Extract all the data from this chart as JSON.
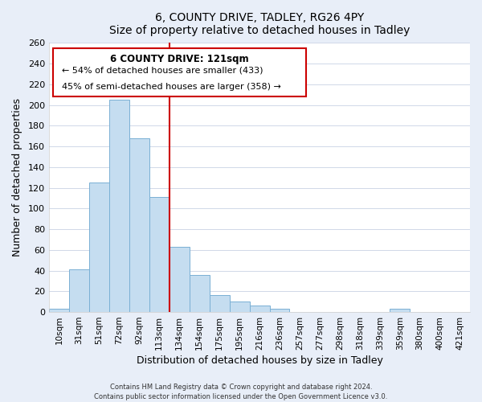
{
  "title": "6, COUNTY DRIVE, TADLEY, RG26 4PY",
  "subtitle": "Size of property relative to detached houses in Tadley",
  "xlabel": "Distribution of detached houses by size in Tadley",
  "ylabel": "Number of detached properties",
  "bin_labels": [
    "10sqm",
    "31sqm",
    "51sqm",
    "72sqm",
    "92sqm",
    "113sqm",
    "134sqm",
    "154sqm",
    "175sqm",
    "195sqm",
    "216sqm",
    "236sqm",
    "257sqm",
    "277sqm",
    "298sqm",
    "318sqm",
    "339sqm",
    "359sqm",
    "380sqm",
    "400sqm",
    "421sqm"
  ],
  "bar_heights": [
    3,
    41,
    125,
    205,
    168,
    111,
    63,
    36,
    16,
    10,
    6,
    3,
    0,
    0,
    0,
    0,
    0,
    3,
    0,
    0,
    0
  ],
  "bar_color": "#c5ddf0",
  "bar_edge_color": "#7ab0d4",
  "vline_color": "#cc0000",
  "vline_x_index": 5,
  "ylim": [
    0,
    260
  ],
  "yticks": [
    0,
    20,
    40,
    60,
    80,
    100,
    120,
    140,
    160,
    180,
    200,
    220,
    240,
    260
  ],
  "annotation_title": "6 COUNTY DRIVE: 121sqm",
  "annotation_line1": "← 54% of detached houses are smaller (433)",
  "annotation_line2": "45% of semi-detached houses are larger (358) →",
  "annotation_box_color": "#ffffff",
  "annotation_box_edge": "#cc0000",
  "footer1": "Contains HM Land Registry data © Crown copyright and database right 2024.",
  "footer2": "Contains public sector information licensed under the Open Government Licence v3.0.",
  "background_color": "#e8eef8",
  "plot_background": "#ffffff",
  "grid_color": "#d0d8e8"
}
